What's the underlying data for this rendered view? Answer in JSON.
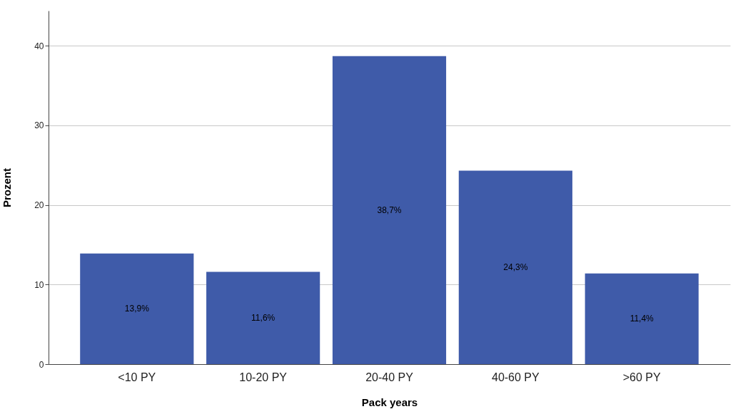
{
  "chart_data": {
    "type": "bar",
    "xlabel": "Pack years",
    "ylabel": "Prozent",
    "categories": [
      "<10 PY",
      "10-20 PY",
      "20-40 PY",
      "40-60 PY",
      ">60 PY"
    ],
    "values": [
      13.9,
      11.6,
      38.7,
      24.3,
      11.4
    ],
    "value_labels": [
      "13,9%",
      "11,6%",
      "38,7%",
      "24,3%",
      "11,4%"
    ],
    "color": "#3f5ba9",
    "ylim": [
      0,
      44.4
    ],
    "yticks": [
      0,
      10,
      20,
      30,
      40
    ],
    "grid": "y"
  }
}
